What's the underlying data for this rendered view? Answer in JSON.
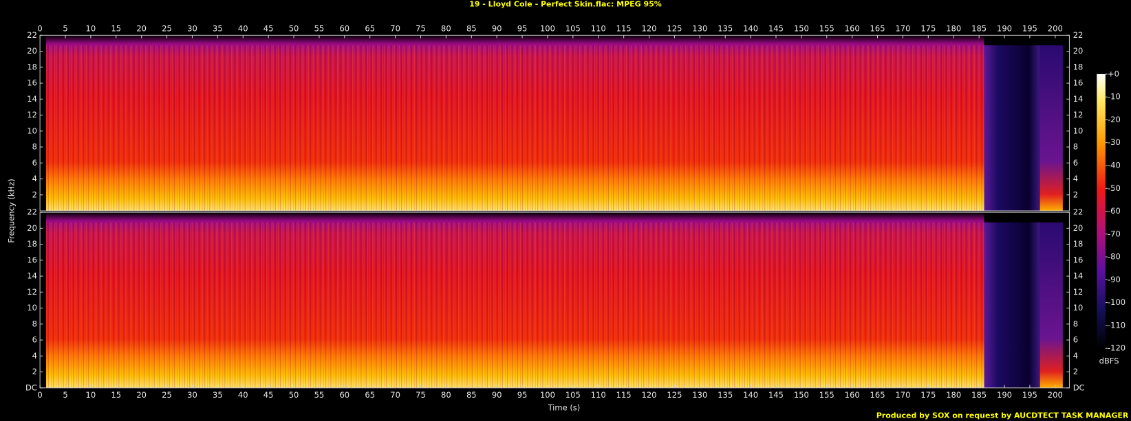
{
  "chart_data": {
    "type": "spectrogram",
    "title": "19 - Lloyd Cole - Perfect Skin.flac: MPEG 95%",
    "x_label": "Time (s)",
    "y_label": "Frequency (kHz)",
    "xlim": [
      0,
      202.8
    ],
    "xticks": [
      0,
      5,
      10,
      15,
      20,
      25,
      30,
      35,
      40,
      45,
      50,
      55,
      60,
      65,
      70,
      75,
      80,
      85,
      90,
      95,
      100,
      105,
      110,
      115,
      120,
      125,
      130,
      135,
      140,
      145,
      150,
      155,
      160,
      165,
      170,
      175,
      180,
      185,
      190,
      195,
      200
    ],
    "ylim": [
      0,
      22
    ],
    "yticks": [
      {
        "value": 0,
        "label": "DC"
      },
      2,
      4,
      6,
      8,
      10,
      12,
      14,
      16,
      18,
      20,
      22
    ],
    "channels": 2,
    "colorbar_label": "dBFS",
    "zlim": [
      -120,
      0
    ],
    "zticks": [
      {
        "value": 0,
        "label": "+0"
      },
      -10,
      -20,
      -30,
      -40,
      -50,
      -60,
      -70,
      -80,
      -90,
      -100,
      -110,
      -120
    ],
    "footer": "Produced by SOX on request by AUCDTECT TASK MANAGER"
  }
}
